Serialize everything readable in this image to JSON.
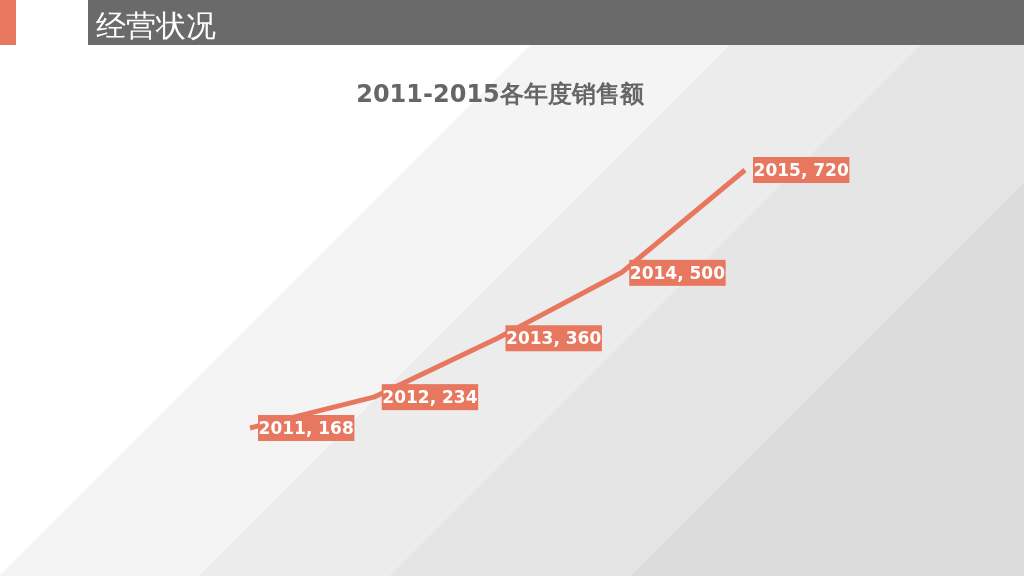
{
  "chart_data": {
    "type": "line",
    "title": "2011-2015各年度销售额",
    "annotations": [
      "经营状况"
    ],
    "categories": [
      null,
      null,
      null,
      null,
      null
    ],
    "series": [
      {
        "color": "#e8775f",
        "values": [
          168,
          234,
          360,
          500,
          720
        ],
        "value_labels": [
          "2011, 168",
          "2012, 234",
          "2013, 360",
          "2014, 500",
          "2015, 720"
        ]
      }
    ]
  }
}
